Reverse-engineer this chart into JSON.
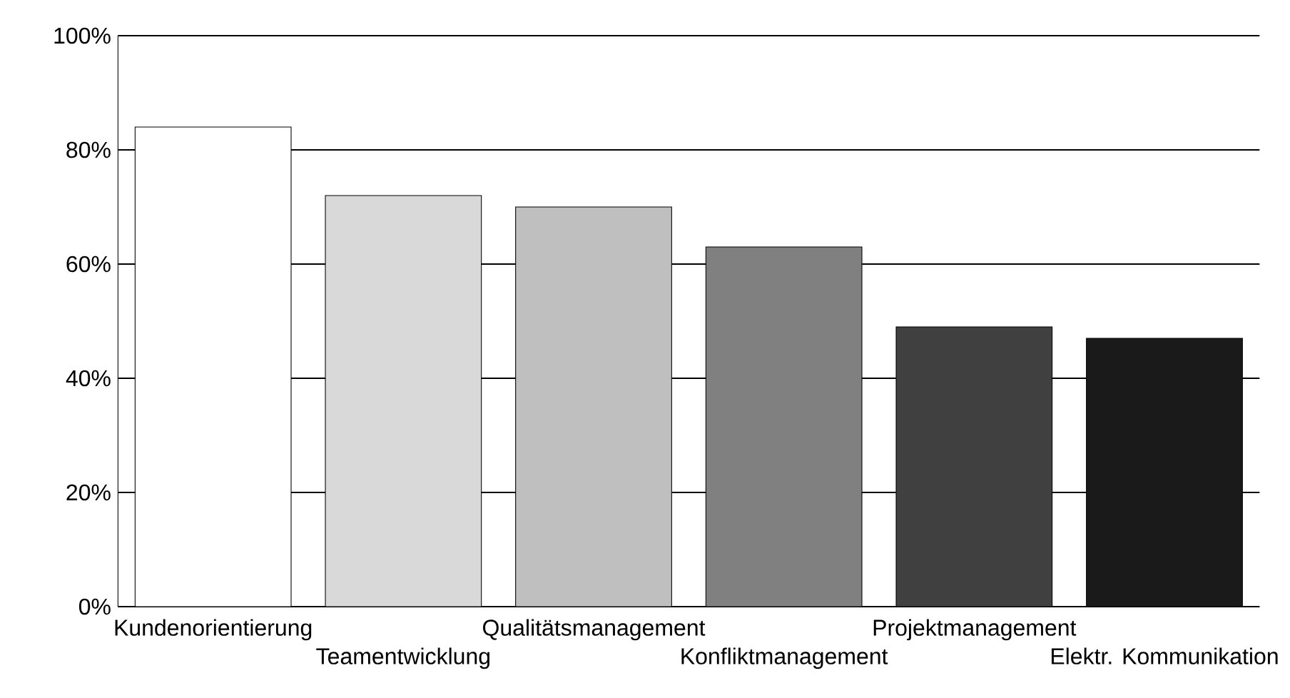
{
  "chart_data": {
    "type": "bar",
    "categories": [
      "Kundenorientierung",
      "Teamentwicklung",
      "Qualitätsmanagement",
      "Konfliktmanagement",
      "Projektmanagement",
      "Elektr. Kommunikation"
    ],
    "values": [
      84,
      72,
      70,
      63,
      49,
      47
    ],
    "colors": [
      "#ffffff",
      "#d9d9d9",
      "#bfbfbf",
      "#808080",
      "#404040",
      "#1a1a1a"
    ],
    "ylim": [
      0,
      100
    ],
    "yticks": [
      {
        "value": 0,
        "label": "0%"
      },
      {
        "value": 20,
        "label": "20%"
      },
      {
        "value": 40,
        "label": "40%"
      },
      {
        "value": 60,
        "label": "60%"
      },
      {
        "value": 80,
        "label": "80%"
      },
      {
        "value": 100,
        "label": "100%"
      }
    ],
    "grid": "y"
  }
}
